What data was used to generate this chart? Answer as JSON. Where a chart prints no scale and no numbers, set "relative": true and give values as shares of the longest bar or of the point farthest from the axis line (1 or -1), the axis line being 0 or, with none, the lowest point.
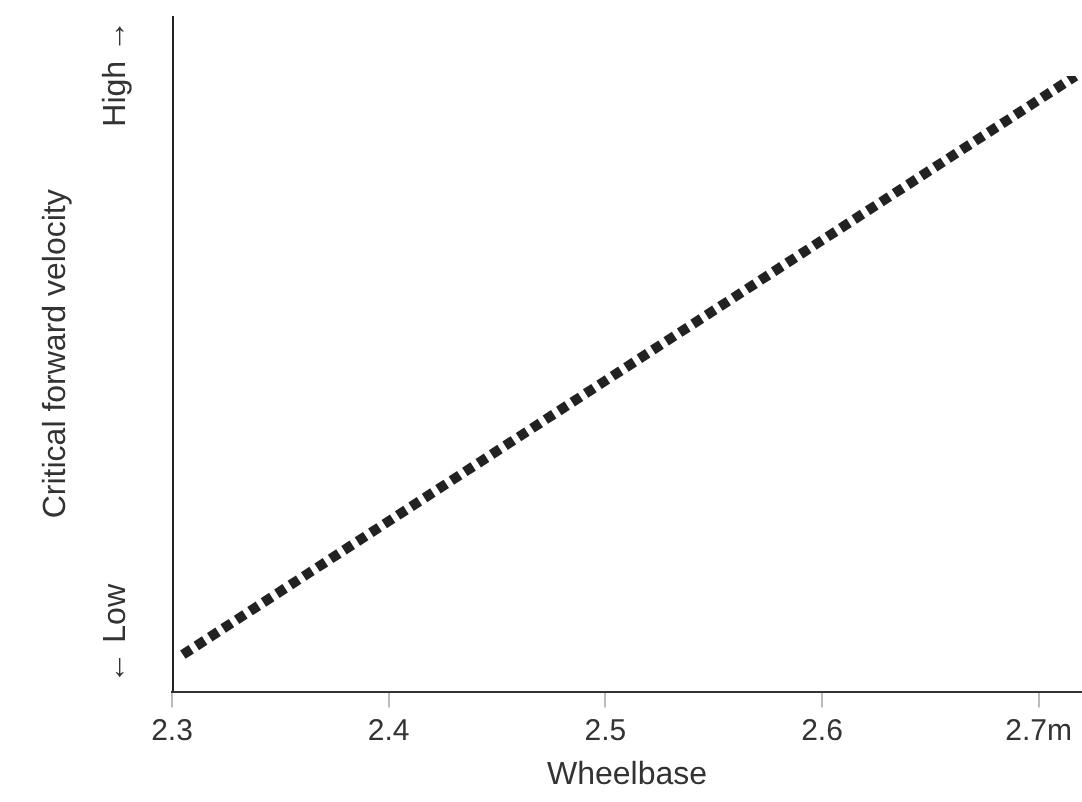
{
  "chart_data": {
    "type": "line",
    "relative": true,
    "xlabel": "Wheelbase",
    "ylabel": "Critical forward velocity",
    "annotations": [
      "← Low",
      "High →"
    ],
    "x": [
      2.305,
      2.717
    ],
    "series": [
      {
        "color": "#222222",
        "values": [
          0.06,
          1
        ]
      }
    ],
    "xlim": [
      2.3,
      2.72
    ],
    "xticks": [
      2.3,
      2.4,
      2.5,
      2.6,
      {
        "value": 2.7,
        "label": "2.7m"
      }
    ],
    "grid": false,
    "legend": false,
    "marker": "none",
    "line_style": "dotted"
  }
}
